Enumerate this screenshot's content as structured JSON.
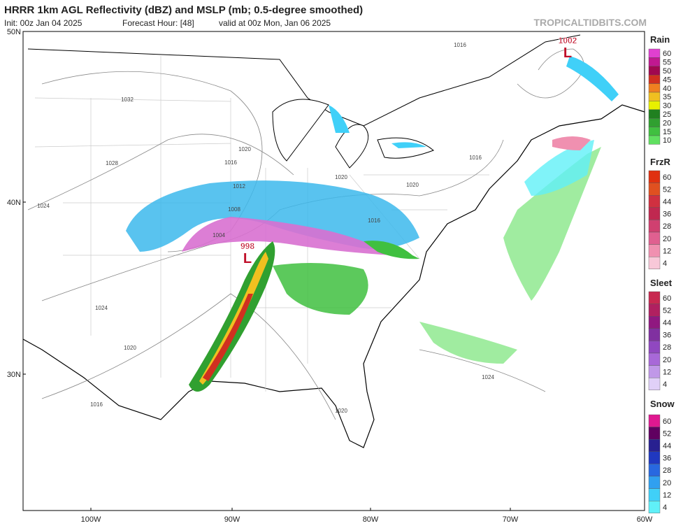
{
  "header": {
    "title": "HRRR 1km AGL Reflectivity (dBZ) and MSLP (mb; 0.5-degree smoothed)",
    "init": "Init: 00z Jan 04 2025",
    "forecast_hour": "Forecast Hour: [48]",
    "valid": "valid at 00z Mon, Jan 06 2025",
    "credit": "TROPICALTIDBITS.COM"
  },
  "axes": {
    "lat_labels": [
      "50N",
      "40N",
      "30N"
    ],
    "lon_labels": [
      "100W",
      "90W",
      "80W",
      "70W",
      "60W"
    ]
  },
  "pressure_centers": [
    {
      "value": "1002",
      "symbol": "L"
    },
    {
      "value": "998",
      "symbol": "L"
    }
  ],
  "isobar_labels": [
    "1032",
    "1028",
    "1024",
    "1024",
    "1020",
    "1016",
    "1020",
    "1016",
    "1012",
    "1008",
    "1004",
    "1020",
    "1016",
    "1020",
    "1016",
    "1016",
    "1024",
    "1020"
  ],
  "legends": [
    {
      "title": "Rain",
      "ticks": [
        "60",
        "55",
        "50",
        "45",
        "40",
        "35",
        "30",
        "25",
        "20",
        "15",
        "10"
      ],
      "colors": [
        "#e040d0",
        "#c01890",
        "#a00850",
        "#d03020",
        "#f08020",
        "#f0c020",
        "#e8f000",
        "#208020",
        "#30a030",
        "#40c040",
        "#60e060"
      ]
    },
    {
      "title": "FrzR",
      "ticks": [
        "60",
        "52",
        "44",
        "36",
        "28",
        "20",
        "12",
        "4"
      ],
      "colors": [
        "#e03010",
        "#e05020",
        "#d03040",
        "#c02850",
        "#d04070",
        "#e06090",
        "#f090b0",
        "#f8c8d8"
      ]
    },
    {
      "title": "Sleet",
      "ticks": [
        "60",
        "52",
        "44",
        "36",
        "28",
        "20",
        "12",
        "4"
      ],
      "colors": [
        "#c82850",
        "#b02060",
        "#901880",
        "#8030a0",
        "#9048c0",
        "#a868d8",
        "#c098e8",
        "#e0d0f8"
      ]
    },
    {
      "title": "Snow",
      "ticks": [
        "60",
        "52",
        "44",
        "36",
        "28",
        "20",
        "12",
        "4"
      ],
      "colors": [
        "#e01890",
        "#600060",
        "#282090",
        "#2038c0",
        "#2868e0",
        "#30a0f0",
        "#40d0f8",
        "#60f0f8"
      ]
    }
  ]
}
